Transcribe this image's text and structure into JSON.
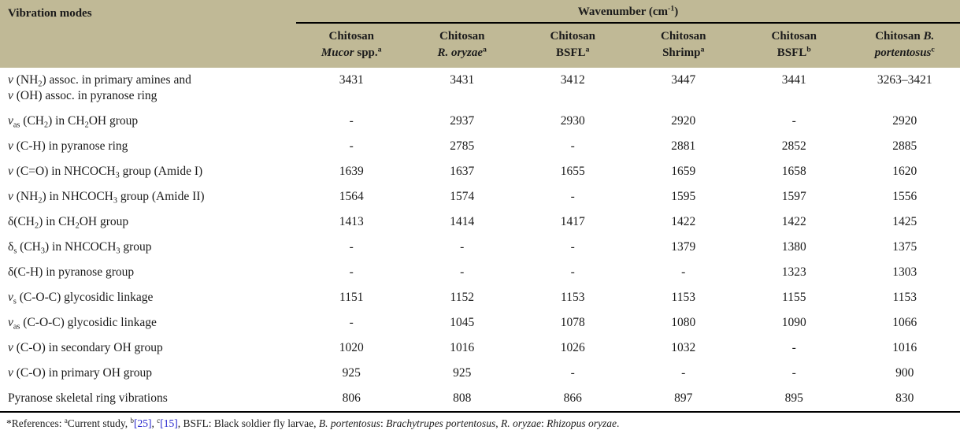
{
  "colors": {
    "header_bg": "#c0b996",
    "link_blue": "#2323cc",
    "text": "#1b1b1b"
  },
  "table": {
    "corner_header": "Vibration modes",
    "span_header": [
      {
        "t": "Wavenumber (cm"
      },
      {
        "t": "-1",
        "sup": true
      },
      {
        "t": ")"
      }
    ],
    "columns": [
      [
        {
          "t": "Chitosan"
        },
        {
          "br": true
        },
        {
          "t": "Mucor",
          "i": true
        },
        {
          "t": " spp."
        },
        {
          "t": "a",
          "sup": true
        }
      ],
      [
        {
          "t": "Chitosan"
        },
        {
          "br": true
        },
        {
          "t": "R. oryzae",
          "i": true
        },
        {
          "t": "a",
          "sup": true
        }
      ],
      [
        {
          "t": "Chitosan"
        },
        {
          "br": true
        },
        {
          "t": "BSFL"
        },
        {
          "t": "a",
          "sup": true
        }
      ],
      [
        {
          "t": "Chitosan"
        },
        {
          "br": true
        },
        {
          "t": "Shrimp"
        },
        {
          "t": "a",
          "sup": true
        }
      ],
      [
        {
          "t": "Chitosan"
        },
        {
          "br": true
        },
        {
          "t": "BSFL"
        },
        {
          "t": "b",
          "sup": true
        }
      ],
      [
        {
          "t": "Chitosan "
        },
        {
          "t": "B.",
          "i": true
        },
        {
          "br": true
        },
        {
          "t": "portentosus",
          "i": true
        },
        {
          "t": "c",
          "sup": true
        }
      ]
    ],
    "rows": [
      {
        "label": [
          {
            "t": "ν",
            "i": true
          },
          {
            "t": " (NH"
          },
          {
            "t": "2",
            "sub": true
          },
          {
            "t": ") assoc. in primary amines and"
          },
          {
            "br": true
          },
          {
            "t": "ν",
            "i": true
          },
          {
            "t": " (OH) assoc. in pyranose ring"
          }
        ],
        "values": [
          "3431",
          "3431",
          "3412",
          "3447",
          "3441",
          "3263–3421"
        ]
      },
      {
        "label": [
          {
            "t": "ν",
            "i": true
          },
          {
            "t": "as",
            "sub": true
          },
          {
            "t": " (CH"
          },
          {
            "t": "2",
            "sub": true
          },
          {
            "t": ") in CH"
          },
          {
            "t": "2",
            "sub": true
          },
          {
            "t": "OH group"
          }
        ],
        "values": [
          "-",
          "2937",
          "2930",
          "2920",
          "-",
          "2920"
        ]
      },
      {
        "label": [
          {
            "t": "ν",
            "i": true
          },
          {
            "t": " (C-H) in pyranose ring"
          }
        ],
        "values": [
          "-",
          "2785",
          "-",
          "2881",
          "2852",
          "2885"
        ]
      },
      {
        "label": [
          {
            "t": "ν",
            "i": true
          },
          {
            "t": " (C=O) in NHCOCH"
          },
          {
            "t": "3",
            "sub": true
          },
          {
            "t": " group (Amide I)"
          }
        ],
        "values": [
          "1639",
          "1637",
          "1655",
          "1659",
          "1658",
          "1620"
        ]
      },
      {
        "label": [
          {
            "t": "ν",
            "i": true
          },
          {
            "t": " (NH"
          },
          {
            "t": "2",
            "sub": true
          },
          {
            "t": ") in NHCOCH"
          },
          {
            "t": "3",
            "sub": true
          },
          {
            "t": " group (Amide II)"
          }
        ],
        "values": [
          "1564",
          "1574",
          "-",
          "1595",
          "1597",
          "1556"
        ]
      },
      {
        "label": [
          {
            "t": "δ(CH"
          },
          {
            "t": "2",
            "sub": true
          },
          {
            "t": ") in CH"
          },
          {
            "t": "2",
            "sub": true
          },
          {
            "t": "OH group"
          }
        ],
        "values": [
          "1413",
          "1414",
          "1417",
          "1422",
          "1422",
          "1425"
        ]
      },
      {
        "label": [
          {
            "t": "δ"
          },
          {
            "t": "s",
            "sub": true
          },
          {
            "t": " (CH"
          },
          {
            "t": "3",
            "sub": true
          },
          {
            "t": ") in NHCOCH"
          },
          {
            "t": "3",
            "sub": true
          },
          {
            "t": " group"
          }
        ],
        "values": [
          "-",
          "-",
          "-",
          "1379",
          "1380",
          "1375"
        ]
      },
      {
        "label": [
          {
            "t": "δ(C-H) in pyranose group"
          }
        ],
        "values": [
          "-",
          "-",
          "-",
          "-",
          "1323",
          "1303"
        ]
      },
      {
        "label": [
          {
            "t": "ν",
            "i": true
          },
          {
            "t": "s",
            "sub": true
          },
          {
            "t": " (C-O-C) glycosidic linkage"
          }
        ],
        "values": [
          "1151",
          "1152",
          "1153",
          "1153",
          "1155",
          "1153"
        ]
      },
      {
        "label": [
          {
            "t": "ν",
            "i": true
          },
          {
            "t": "as",
            "sub": true
          },
          {
            "t": " (C-O-C) glycosidic linkage"
          }
        ],
        "values": [
          "-",
          "1045",
          "1078",
          "1080",
          "1090",
          "1066"
        ]
      },
      {
        "label": [
          {
            "t": "ν",
            "i": true
          },
          {
            "t": " (C-O) in secondary OH group"
          }
        ],
        "values": [
          "1020",
          "1016",
          "1026",
          "1032",
          "-",
          "1016"
        ]
      },
      {
        "label": [
          {
            "t": "ν",
            "i": true
          },
          {
            "t": " (C-O) in primary OH group"
          }
        ],
        "values": [
          "925",
          "925",
          "-",
          "-",
          "-",
          "900"
        ]
      },
      {
        "label": [
          {
            "t": "Pyranose skeletal ring vibrations"
          }
        ],
        "values": [
          "806",
          "808",
          "866",
          "897",
          "895",
          "830"
        ]
      }
    ]
  },
  "footnote": [
    {
      "t": "*References: "
    },
    {
      "t": "a",
      "sup": true
    },
    {
      "t": "Current study, "
    },
    {
      "t": "b",
      "sup": true
    },
    {
      "t": "[25]",
      "link": true
    },
    {
      "t": ", "
    },
    {
      "t": "c",
      "sup": true
    },
    {
      "t": "[15]",
      "link": true
    },
    {
      "t": ", BSFL: Black soldier fly larvae, "
    },
    {
      "t": "B. portentosus",
      "i": true
    },
    {
      "t": ": "
    },
    {
      "t": "Brachytrupes portentosus",
      "i": true
    },
    {
      "t": ", "
    },
    {
      "t": "R. oryzae",
      "i": true
    },
    {
      "t": ": "
    },
    {
      "t": "Rhizopus oryzae",
      "i": true
    },
    {
      "t": "."
    }
  ]
}
